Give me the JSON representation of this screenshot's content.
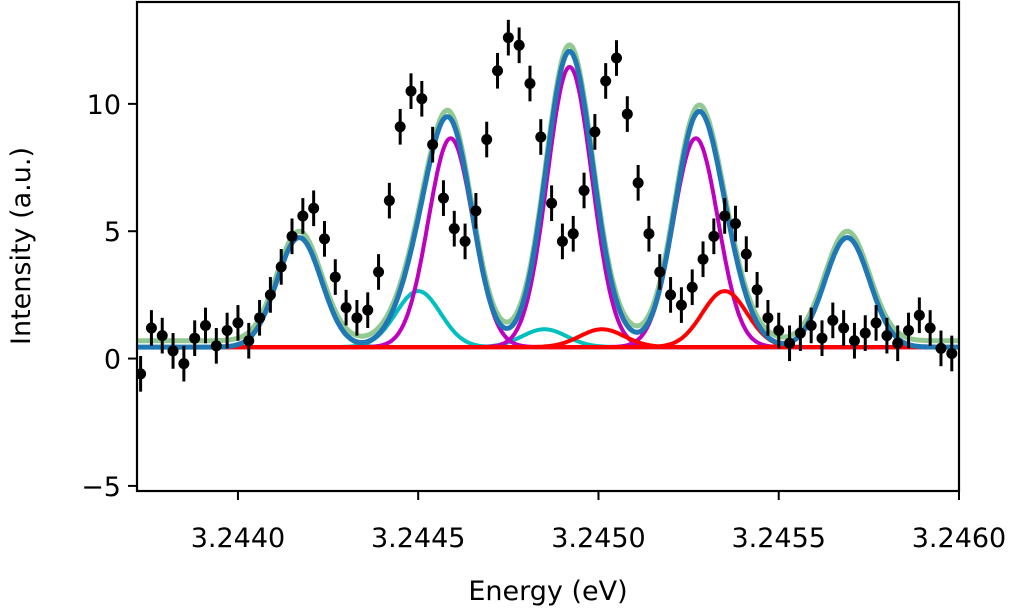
{
  "chart_data": {
    "type": "scatter",
    "title": "",
    "xlabel": "Energy (eV)",
    "ylabel": "Intensity (a.u.)",
    "xlim": [
      3.24372,
      3.246
    ],
    "ylim": [
      -5.2,
      14.0
    ],
    "xticks": [
      3.244,
      3.2445,
      3.245,
      3.2455,
      3.246
    ],
    "xtick_labels": [
      "3.2440",
      "3.2445",
      "3.2450",
      "3.2455",
      "3.2460"
    ],
    "yticks": [
      -5,
      0,
      5,
      10
    ],
    "ytick_labels": [
      "−5",
      "0",
      "5",
      "10"
    ],
    "grid": false,
    "legend": "none",
    "baseline": 0.45,
    "data_points": {
      "name": "",
      "color": "#000000",
      "error_bar": 0.7,
      "x": [
        3.24373,
        3.24376,
        3.24379,
        3.24382,
        3.24385,
        3.24388,
        3.24391,
        3.24394,
        3.24397,
        3.244,
        3.24403,
        3.24406,
        3.24409,
        3.24412,
        3.24415,
        3.24418,
        3.24421,
        3.24424,
        3.24427,
        3.2443,
        3.24433,
        3.24436,
        3.24439,
        3.24442,
        3.24445,
        3.24448,
        3.24451,
        3.24454,
        3.24457,
        3.2446,
        3.24463,
        3.24466,
        3.24469,
        3.24472,
        3.24475,
        3.24478,
        3.24481,
        3.24484,
        3.24487,
        3.2449,
        3.24493,
        3.24496,
        3.24499,
        3.24502,
        3.24505,
        3.24508,
        3.24511,
        3.24514,
        3.24517,
        3.2452,
        3.24523,
        3.24526,
        3.24529,
        3.24532,
        3.24535,
        3.24538,
        3.24541,
        3.24544,
        3.24547,
        3.2455,
        3.24553,
        3.24556,
        3.24559,
        3.24562,
        3.24565,
        3.24568,
        3.24571,
        3.24574,
        3.24577,
        3.2458,
        3.24583,
        3.24586,
        3.24589,
        3.24592,
        3.24595,
        3.24598
      ],
      "y": [
        -0.6,
        1.2,
        0.9,
        0.3,
        -0.2,
        0.8,
        1.3,
        0.5,
        1.1,
        1.4,
        0.7,
        1.6,
        2.5,
        3.6,
        4.8,
        5.6,
        5.9,
        4.7,
        3.2,
        2.0,
        1.6,
        1.9,
        3.4,
        6.2,
        9.1,
        10.5,
        10.2,
        8.4,
        6.3,
        5.1,
        4.6,
        5.8,
        8.6,
        11.3,
        12.6,
        12.3,
        10.8,
        8.7,
        6.1,
        4.6,
        4.9,
        6.6,
        8.9,
        10.9,
        11.8,
        9.6,
        6.9,
        4.9,
        3.4,
        2.5,
        2.1,
        2.8,
        3.9,
        4.8,
        5.6,
        5.3,
        4.1,
        2.7,
        1.6,
        1.1,
        0.6,
        1.0,
        1.3,
        0.8,
        1.5,
        1.2,
        0.7,
        1.0,
        1.4,
        0.9,
        0.6,
        1.1,
        1.7,
        1.2,
        0.4,
        0.2
      ]
    },
    "series": [
      {
        "name": "",
        "color": "#7fbf7f",
        "kind": "total_fit_envelope",
        "offset": 0.25
      },
      {
        "name": "",
        "color": "#1f77b4",
        "kind": "total_fit"
      },
      {
        "name": "",
        "color": "#00bfbf",
        "kind": "component",
        "center": 3.24417,
        "amplitude": 4.3,
        "sigma": 6.2e-05
      },
      {
        "name": "",
        "color": "#00bfbf",
        "kind": "component",
        "center": 3.2445,
        "amplitude": 2.2,
        "sigma": 6.2e-05
      },
      {
        "name": "",
        "color": "#00bfbf",
        "kind": "component",
        "center": 3.24485,
        "amplitude": 0.7,
        "sigma": 6.2e-05
      },
      {
        "name": "",
        "color": "#bf00bf",
        "kind": "component",
        "center": 3.24459,
        "amplitude": 8.2,
        "sigma": 6.2e-05
      },
      {
        "name": "",
        "color": "#bf00bf",
        "kind": "component",
        "center": 3.24492,
        "amplitude": 11.0,
        "sigma": 6.2e-05
      },
      {
        "name": "",
        "color": "#bf00bf",
        "kind": "component",
        "center": 3.24527,
        "amplitude": 8.2,
        "sigma": 6.2e-05
      },
      {
        "name": "",
        "color": "#ff0000",
        "kind": "component",
        "center": 3.24501,
        "amplitude": 0.7,
        "sigma": 6.2e-05
      },
      {
        "name": "",
        "color": "#ff0000",
        "kind": "component",
        "center": 3.24535,
        "amplitude": 2.2,
        "sigma": 6.2e-05
      },
      {
        "name": "",
        "color": "#ff0000",
        "kind": "component",
        "center": 3.24569,
        "amplitude": 4.3,
        "sigma": 6.2e-05
      }
    ]
  }
}
